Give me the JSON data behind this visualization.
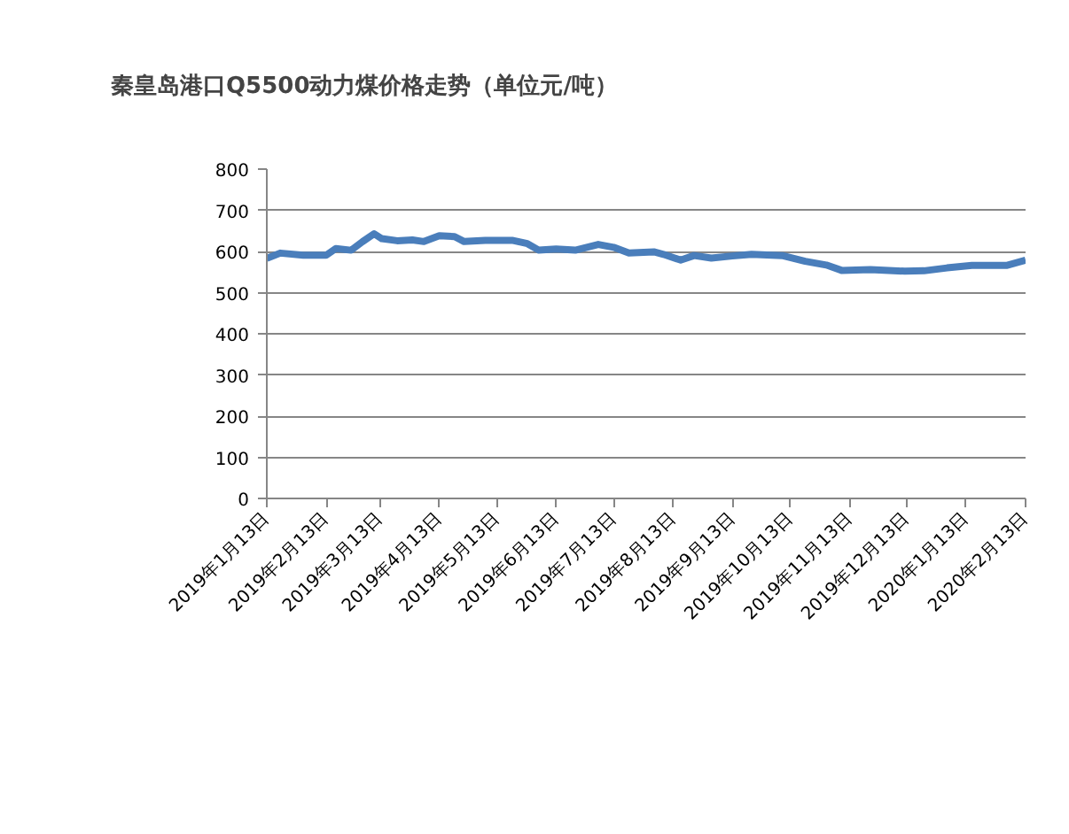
{
  "chart_data": {
    "type": "line",
    "title": "秦皇岛港口Q5500动力煤价格走势（单位元/吨）",
    "x": [
      "2019-01-13",
      "2019-01-20",
      "2019-02-01",
      "2019-02-13",
      "2019-02-18",
      "2019-02-26",
      "2019-03-04",
      "2019-03-10",
      "2019-03-14",
      "2019-03-22",
      "2019-03-30",
      "2019-04-05",
      "2019-04-13",
      "2019-04-21",
      "2019-04-26",
      "2019-05-07",
      "2019-05-21",
      "2019-05-29",
      "2019-06-04",
      "2019-06-13",
      "2019-06-23",
      "2019-07-05",
      "2019-07-13",
      "2019-07-21",
      "2019-08-03",
      "2019-08-08",
      "2019-08-17",
      "2019-08-24",
      "2019-09-02",
      "2019-09-13",
      "2019-09-23",
      "2019-10-09",
      "2019-10-21",
      "2019-11-01",
      "2019-11-09",
      "2019-11-24",
      "2019-12-12",
      "2019-12-22",
      "2020-01-03",
      "2020-01-16",
      "2020-02-03",
      "2020-02-13"
    ],
    "series": [
      {
        "color": "#4a7ebb",
        "values": [
          583,
          596,
          591,
          591,
          607,
          603,
          624,
          643,
          631,
          626,
          628,
          624,
          638,
          636,
          624,
          627,
          627,
          619,
          603,
          606,
          603,
          617,
          610,
          596,
          599,
          593,
          579,
          590,
          584,
          589,
          593,
          590,
          576,
          567,
          554,
          556,
          552,
          553,
          560,
          566,
          566,
          579
        ]
      }
    ],
    "xlim": [
      "2019-01-13",
      "2020-02-13"
    ],
    "xticks": [
      {
        "value": "2019-01-13",
        "label": "2019年1月13日"
      },
      {
        "value": "2019-02-13",
        "label": "2019年2月13日"
      },
      {
        "value": "2019-03-13",
        "label": "2019年3月13日"
      },
      {
        "value": "2019-04-13",
        "label": "2019年4月13日"
      },
      {
        "value": "2019-05-13",
        "label": "2019年5月13日"
      },
      {
        "value": "2019-06-13",
        "label": "2019年6月13日"
      },
      {
        "value": "2019-07-13",
        "label": "2019年7月13日"
      },
      {
        "value": "2019-08-13",
        "label": "2019年8月13日"
      },
      {
        "value": "2019-09-13",
        "label": "2019年9月13日"
      },
      {
        "value": "2019-10-13",
        "label": "2019年10月13日"
      },
      {
        "value": "2019-11-13",
        "label": "2019年11月13日"
      },
      {
        "value": "2019-12-13",
        "label": "2019年12月13日"
      },
      {
        "value": "2020-01-13",
        "label": "2020年1月13日"
      },
      {
        "value": "2020-02-13",
        "label": "2020年2月13日"
      }
    ],
    "ylim": [
      0,
      800
    ],
    "yticks": [
      0,
      100,
      200,
      300,
      400,
      500,
      600,
      700,
      800
    ],
    "grid": "y",
    "marker": "none",
    "line_style": "solid"
  }
}
